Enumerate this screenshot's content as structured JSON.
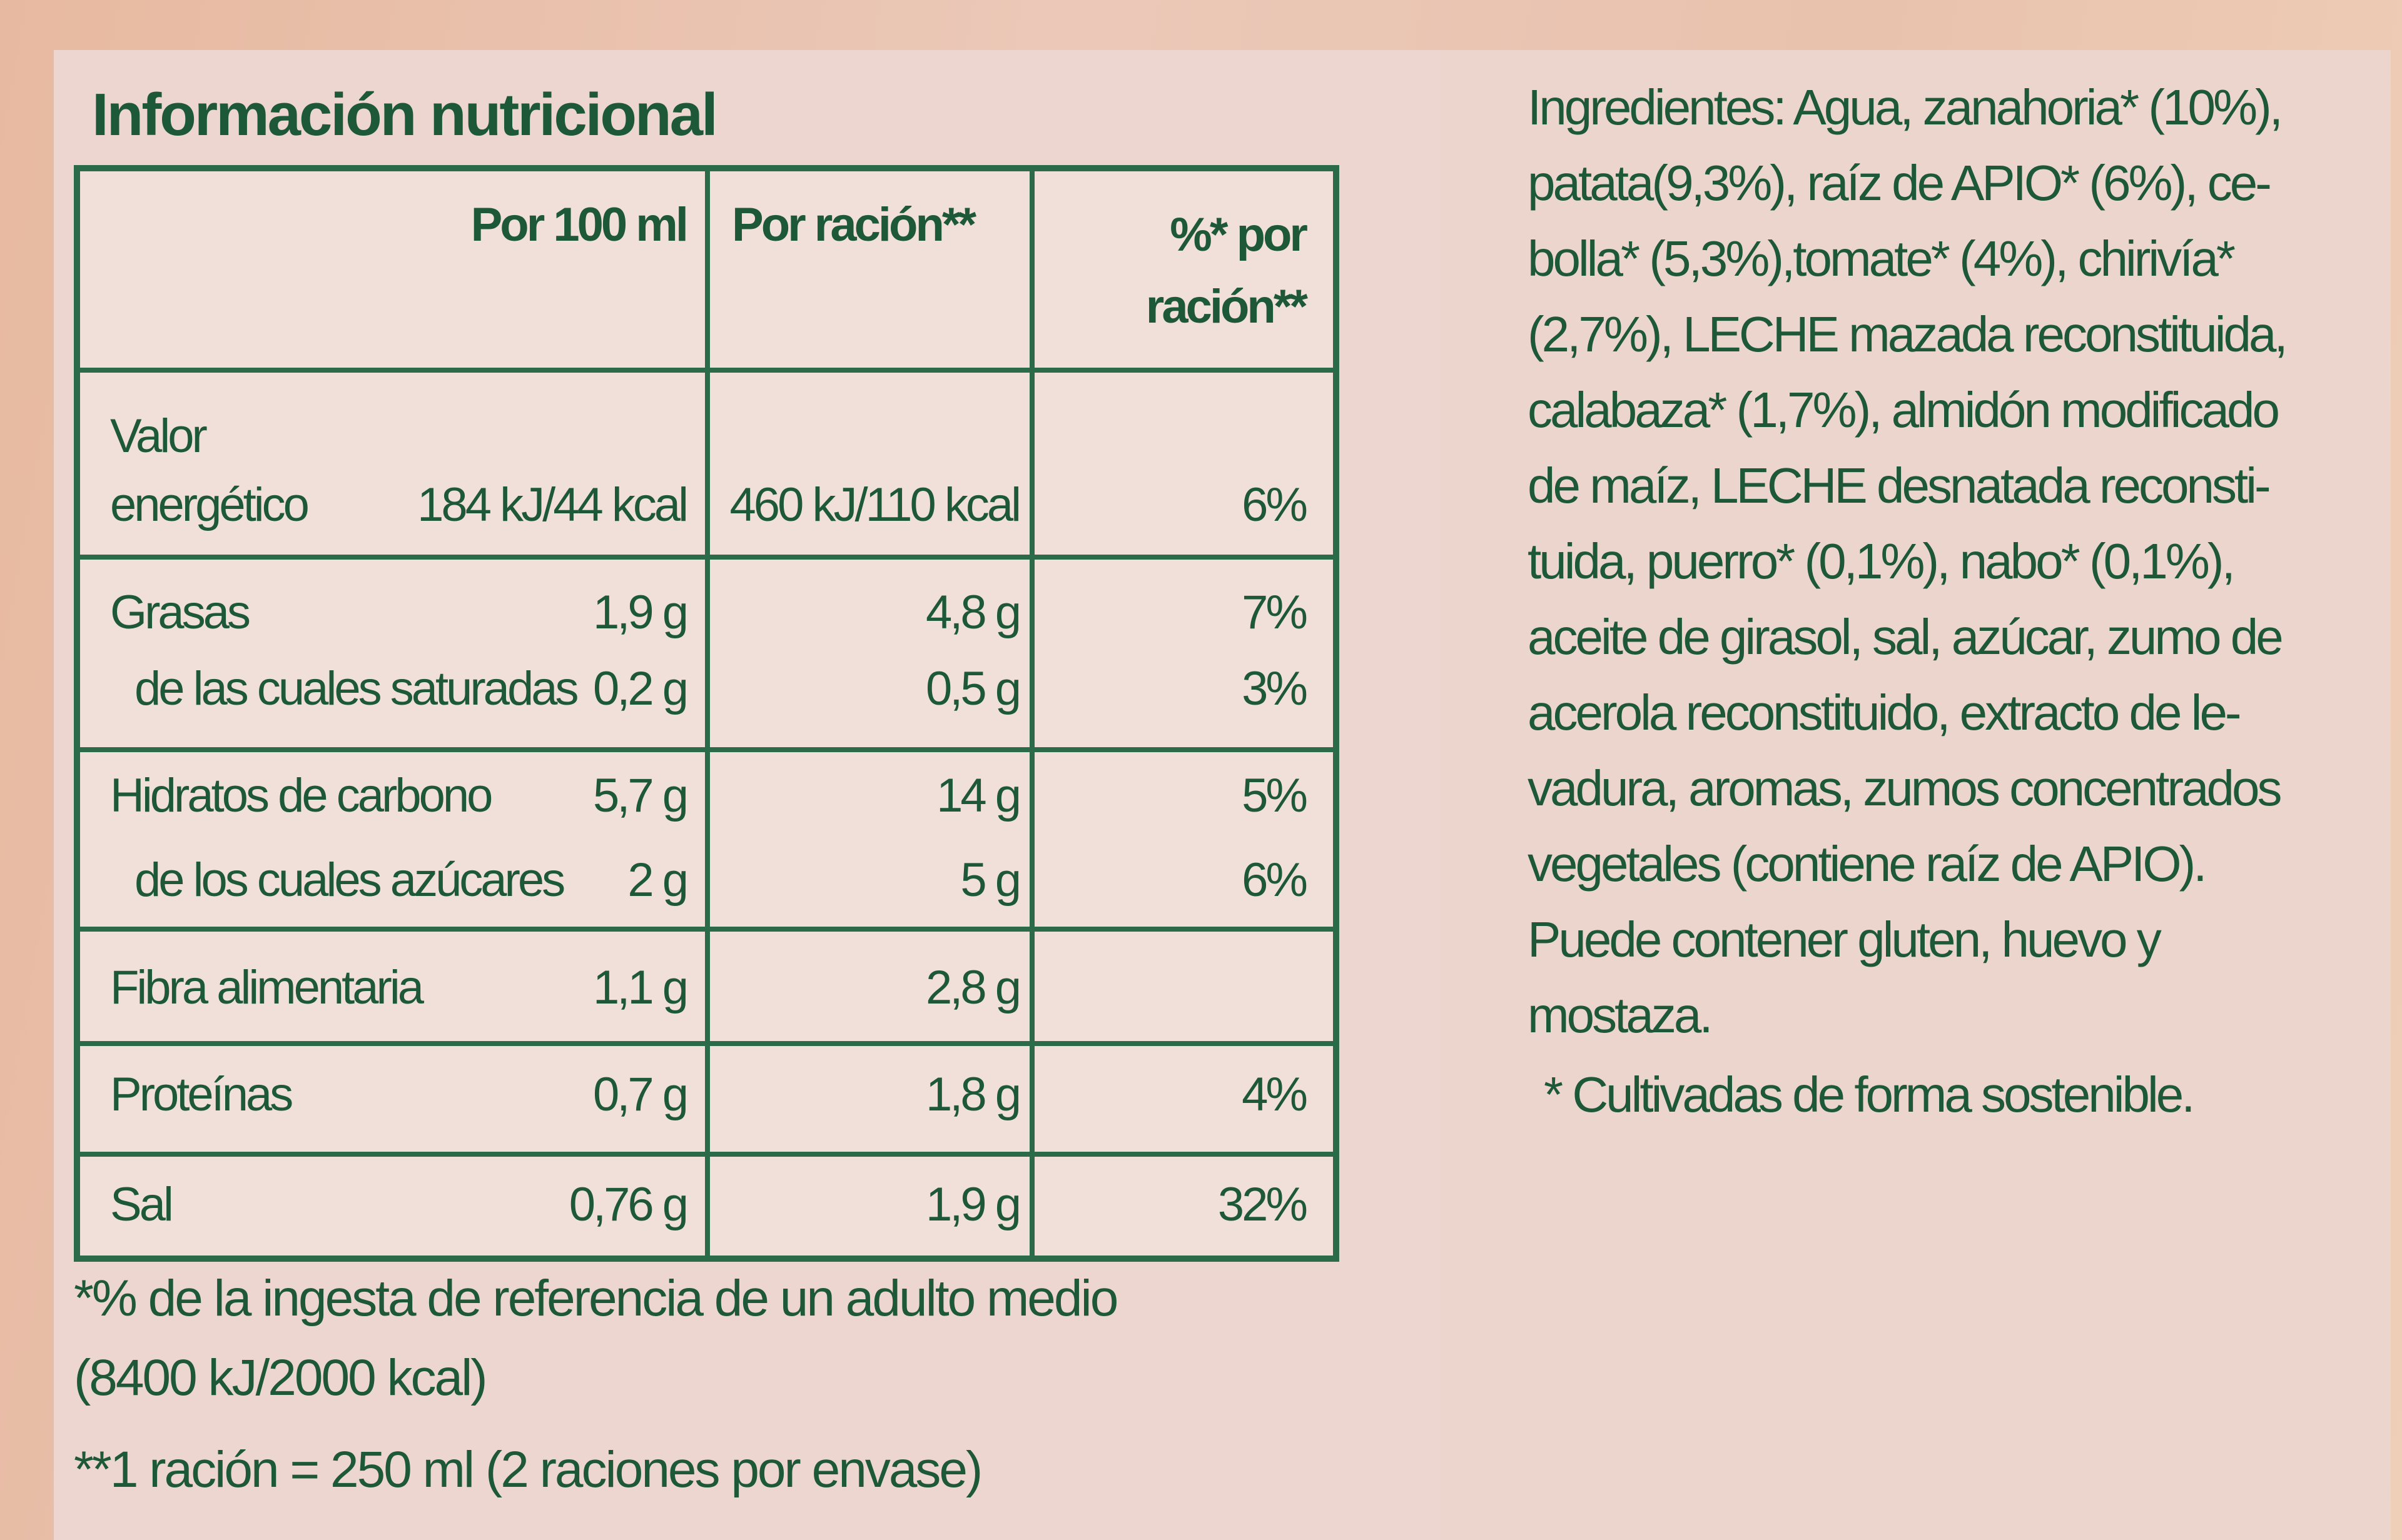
{
  "header": {
    "title": "Información nutricional"
  },
  "table": {
    "columns": [
      "Por 100 ml",
      "Por ración**",
      "%* por ración**"
    ],
    "rows": [
      {
        "lines": [
          {
            "label": "Valor energético",
            "per_100ml": "184 kJ/44 kcal",
            "per_serving": "460 kJ/110 kcal",
            "percent": "6%"
          }
        ]
      },
      {
        "lines": [
          {
            "label": "Grasas",
            "per_100ml": "1,9 g",
            "per_serving": "4,8 g",
            "percent": "7%"
          },
          {
            "label": "de las cuales saturadas",
            "per_100ml": "0,2 g",
            "per_serving": "0,5 g",
            "percent": "3%"
          }
        ]
      },
      {
        "lines": [
          {
            "label": "Hidratos de carbono",
            "per_100ml": "5,7 g",
            "per_serving": "14 g",
            "percent": "5%"
          },
          {
            "label": "de los cuales azúcares",
            "per_100ml": "2 g",
            "per_serving": "5 g",
            "percent": "6%"
          }
        ]
      },
      {
        "lines": [
          {
            "label": "Fibra alimentaria",
            "per_100ml": "1,1 g",
            "per_serving": "2,8 g"
          }
        ]
      },
      {
        "lines": [
          {
            "label": "Proteínas",
            "per_100ml": "0,7 g",
            "per_serving": "1,8 g",
            "percent": "4%"
          }
        ]
      },
      {
        "lines": [
          {
            "label": "Sal",
            "per_100ml": "0,76 g",
            "per_serving": "1,9 g",
            "percent": "32%"
          }
        ]
      }
    ]
  },
  "footnotes": [
    {
      "lines": [
        "*% de la ingesta de referencia de un adulto medio",
        "(8400 kJ/2000 kcal)"
      ]
    },
    {
      "lines": [
        "**1 ración = 250 ml (2 raciones por envase)"
      ]
    }
  ],
  "ingredients": {
    "lines": [
      "Ingredientes: Agua, zanahoria* (10%),",
      "patata(9,3%), raíz de APIO* (6%), ce-",
      "bolla* (5,3%),tomate* (4%), chirivía*",
      "(2,7%), LECHE mazada reconstituida,",
      "calabaza* (1,7%), almidón modificado",
      "de maíz, LECHE desnatada reconsti-",
      "tuida, puerro* (0,1%), nabo* (0,1%),",
      "aceite de girasol, sal, azúcar, zumo de",
      "acerola reconstituido, extracto de le-",
      "vadura, aromas, zumos concentrados",
      "vegetales (contiene raíz de APIO).",
      "Puede contener gluten, huevo y",
      "mostaza."
    ],
    "note": "* Cultivadas de forma sostenible."
  }
}
